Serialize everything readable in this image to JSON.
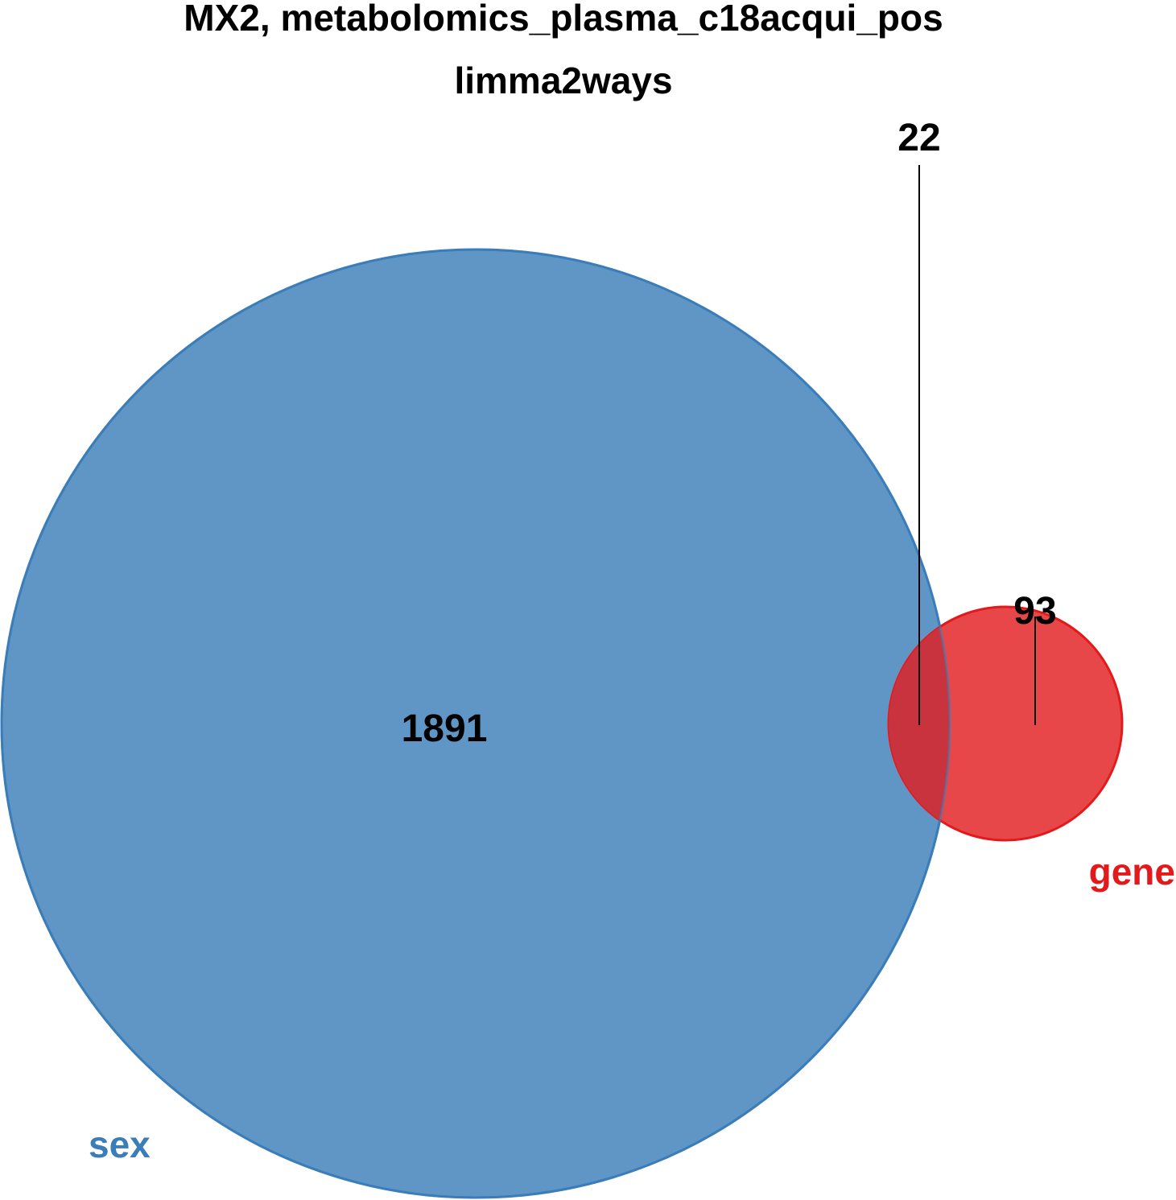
{
  "title": {
    "line1": "MX2, metabolomics_plasma_c18acqui_pos",
    "line2": "limma2ways"
  },
  "sets": [
    {
      "label": "sex",
      "color": "#3B7DB8",
      "fill": "#6096C5"
    },
    {
      "label": "gene",
      "color": "#E31A1C",
      "fill": "#E8474A"
    }
  ],
  "counts": {
    "sex_only": "1891",
    "intersection": "22",
    "gene_only": "93"
  },
  "colors": {
    "overlap": "#C8333E",
    "text": "#000000"
  }
}
